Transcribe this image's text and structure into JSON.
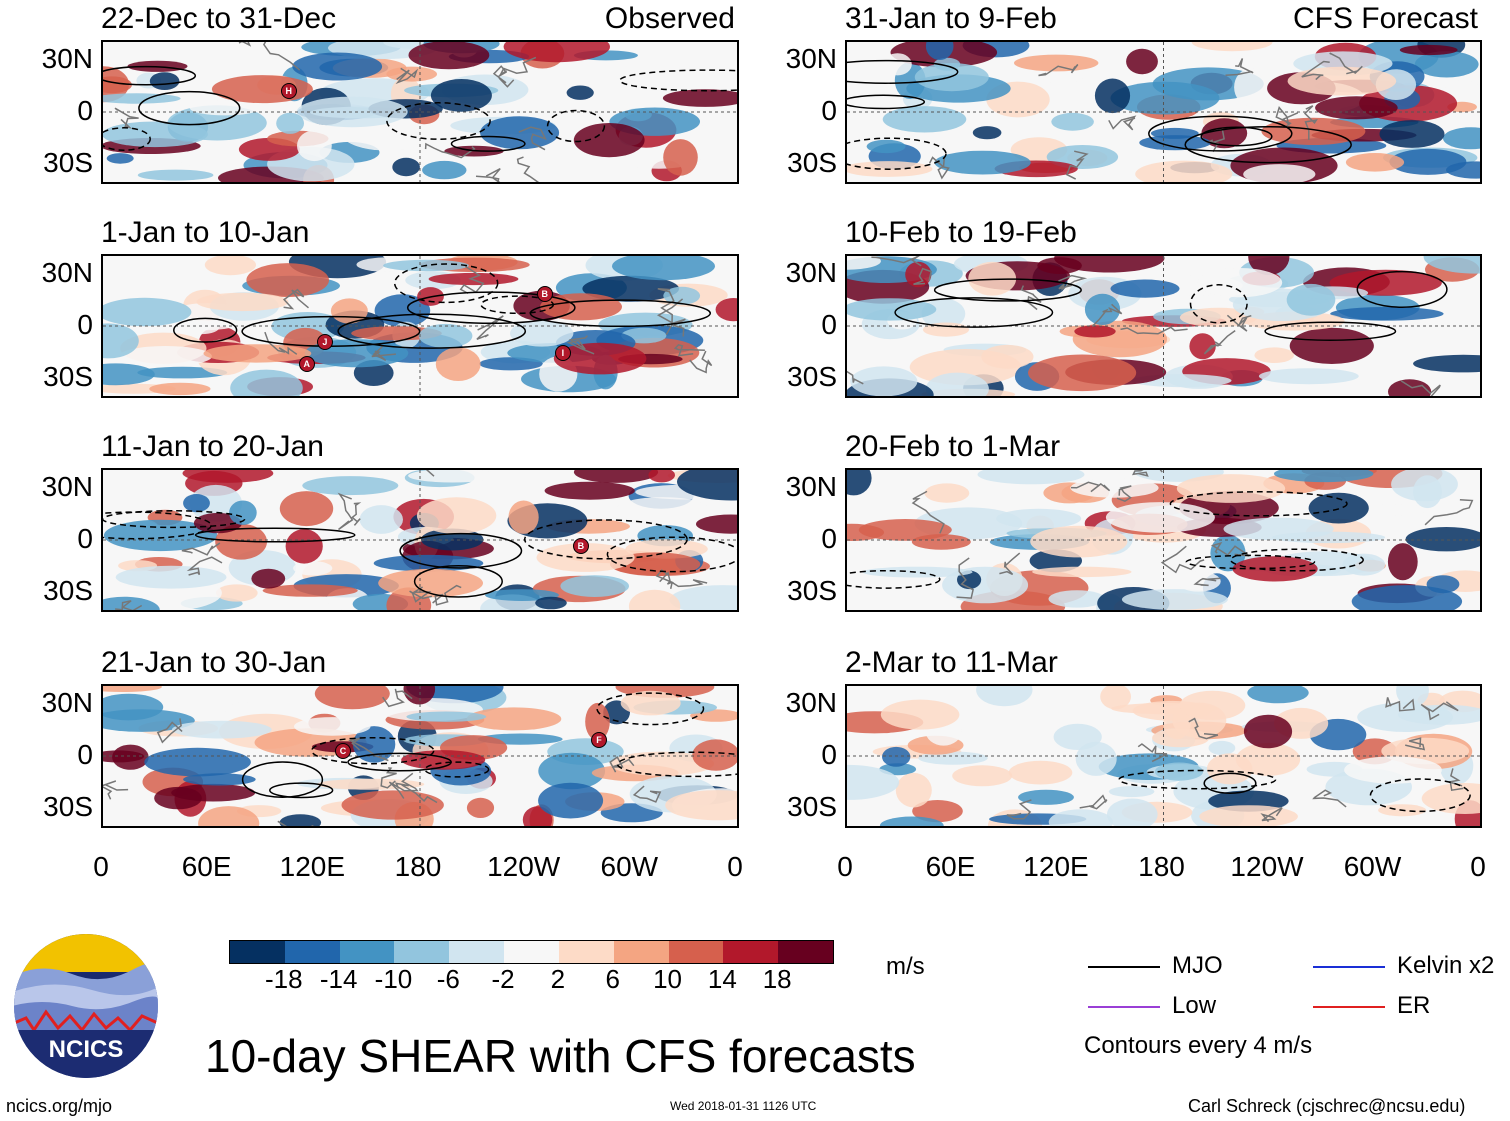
{
  "panels": [
    {
      "title": "22-Dec to 31-Dec",
      "tag": "Observed"
    },
    {
      "title": "1-Jan to 10-Jan",
      "tag": ""
    },
    {
      "title": "11-Jan to 20-Jan",
      "tag": ""
    },
    {
      "title": "21-Jan to 30-Jan",
      "tag": ""
    },
    {
      "title": "31-Jan to 9-Feb",
      "tag": "CFS Forecast"
    },
    {
      "title": "10-Feb to 19-Feb",
      "tag": ""
    },
    {
      "title": "20-Feb to 1-Mar",
      "tag": ""
    },
    {
      "title": "2-Mar to 11-Mar",
      "tag": ""
    }
  ],
  "lat_labels": [
    "30N",
    "0",
    "30S"
  ],
  "lon_labels": [
    "0",
    "60E",
    "120E",
    "180",
    "120W",
    "60W",
    "0"
  ],
  "colorbar": {
    "colors": [
      "#053061",
      "#2166ac",
      "#4393c3",
      "#92c5de",
      "#d1e5f0",
      "#f7f7f7",
      "#fddbc7",
      "#f4a582",
      "#d6604d",
      "#b2182b",
      "#67001f"
    ],
    "labels": [
      "-18",
      "-14",
      "-10",
      "-6",
      "-2",
      "2",
      "6",
      "10",
      "14",
      "18"
    ],
    "units": "m/s"
  },
  "legend": {
    "items": [
      {
        "label": "MJO",
        "color": "#000000"
      },
      {
        "label": "Kelvin x2",
        "color": "#1a2fd6"
      },
      {
        "label": "Low",
        "color": "#9a3fd6"
      },
      {
        "label": "ER",
        "color": "#e02020"
      }
    ],
    "note": "Contours every 4 m/s"
  },
  "storm_markers": [
    {
      "panel": 0,
      "letter": "H"
    },
    {
      "panel": 1,
      "letter": "B"
    },
    {
      "panel": 1,
      "letter": "A"
    },
    {
      "panel": 1,
      "letter": "I"
    },
    {
      "panel": 1,
      "letter": "J"
    },
    {
      "panel": 2,
      "letter": "B"
    },
    {
      "panel": 3,
      "letter": "C"
    },
    {
      "panel": 3,
      "letter": "F"
    }
  ],
  "main_title": "10-day SHEAR with CFS forecasts",
  "logo_text": "NCICS",
  "footer": {
    "url": "ncics.org/mjo",
    "timestamp": "Wed 2018-01-31 1126 UTC",
    "credit": "Carl Schreck (cjschrec@ncsu.edu)"
  }
}
